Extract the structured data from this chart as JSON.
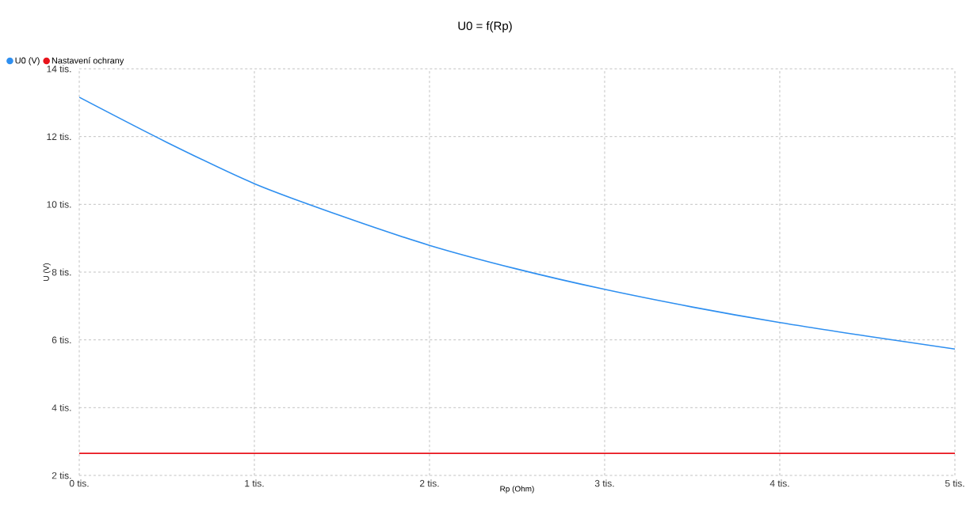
{
  "chart_data": {
    "type": "line",
    "title": "U0 = f(Rp)",
    "xlabel": "Rp (Ohm)",
    "ylabel": "U (V)",
    "x": [
      0,
      0.5,
      1,
      1.5,
      2,
      2.5,
      3,
      3.5,
      4,
      4.5,
      5
    ],
    "series": [
      {
        "name": "U0 (V)",
        "color": "#2e8ff0",
        "values": [
          13.16,
          11.83,
          10.61,
          9.65,
          8.79,
          8.09,
          7.49,
          6.97,
          6.51,
          6.11,
          5.73
        ]
      },
      {
        "name": "Nastavení ochrany",
        "color": "#e8141c",
        "values": [
          2.65,
          2.65,
          2.65,
          2.65,
          2.65,
          2.65,
          2.65,
          2.65,
          2.65,
          2.65,
          2.65
        ]
      }
    ],
    "xlim": [
      0,
      5
    ],
    "ylim": [
      2,
      14
    ],
    "xticks": [
      {
        "value": 0,
        "label": "0 tis."
      },
      {
        "value": 1,
        "label": "1 tis."
      },
      {
        "value": 2,
        "label": "2 tis."
      },
      {
        "value": 3,
        "label": "3 tis."
      },
      {
        "value": 4,
        "label": "4 tis."
      },
      {
        "value": 5,
        "label": "5 tis."
      }
    ],
    "yticks": [
      {
        "value": 2,
        "label": "2 tis."
      },
      {
        "value": 4,
        "label": "4 tis."
      },
      {
        "value": 6,
        "label": "6 tis."
      },
      {
        "value": 8,
        "label": "8 tis."
      },
      {
        "value": 10,
        "label": "10 tis."
      },
      {
        "value": 12,
        "label": "12 tis."
      },
      {
        "value": 14,
        "label": "14 tis."
      }
    ],
    "grid": true,
    "legend": "top left",
    "marker": "none",
    "line_style": "solid"
  }
}
